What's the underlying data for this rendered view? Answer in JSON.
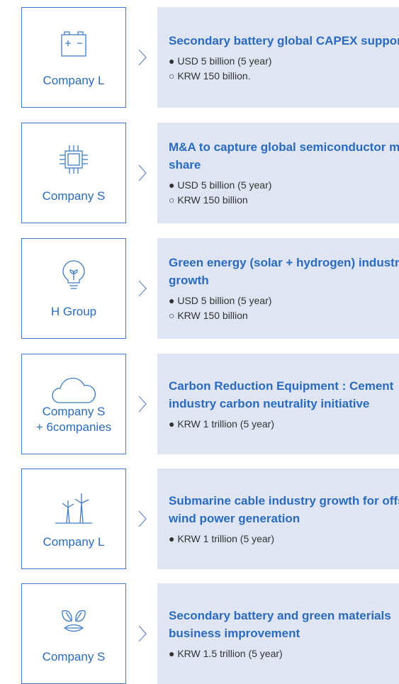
{
  "items": [
    {
      "company": [
        "Company L"
      ],
      "title": "Secondary battery global CAPEX support",
      "bullets": [
        "● USD 5 billion (5 year)",
        "○ KRW 150 billion."
      ]
    },
    {
      "company": [
        "Company S"
      ],
      "title": "M&A to capture global semiconductor market share",
      "bullets": [
        "● USD 5 billion (5 year)",
        "○ KRW 150 billion"
      ]
    },
    {
      "company": [
        "H Group"
      ],
      "title": "Green energy (solar + hydrogen) industry growth",
      "bullets": [
        "● USD 5 billion (5 year)",
        "○ KRW 150 billion"
      ]
    },
    {
      "company": [
        "Company S",
        "+ 6companies"
      ],
      "title": "Carbon Reduction Equipment : Cement industry carbon neutrality initiative",
      "bullets": [
        "● KRW 1 trillion (5 year)"
      ]
    },
    {
      "company": [
        "Company L"
      ],
      "title": "Submarine cable industry growth for offshore wind power generation",
      "bullets": [
        "● KRW 1 trillion (5 year)"
      ]
    },
    {
      "company": [
        "Company S"
      ],
      "title": "Secondary battery and green materials business improvement",
      "bullets": [
        "● KRW 1.5 trillion (5 year)"
      ]
    }
  ]
}
